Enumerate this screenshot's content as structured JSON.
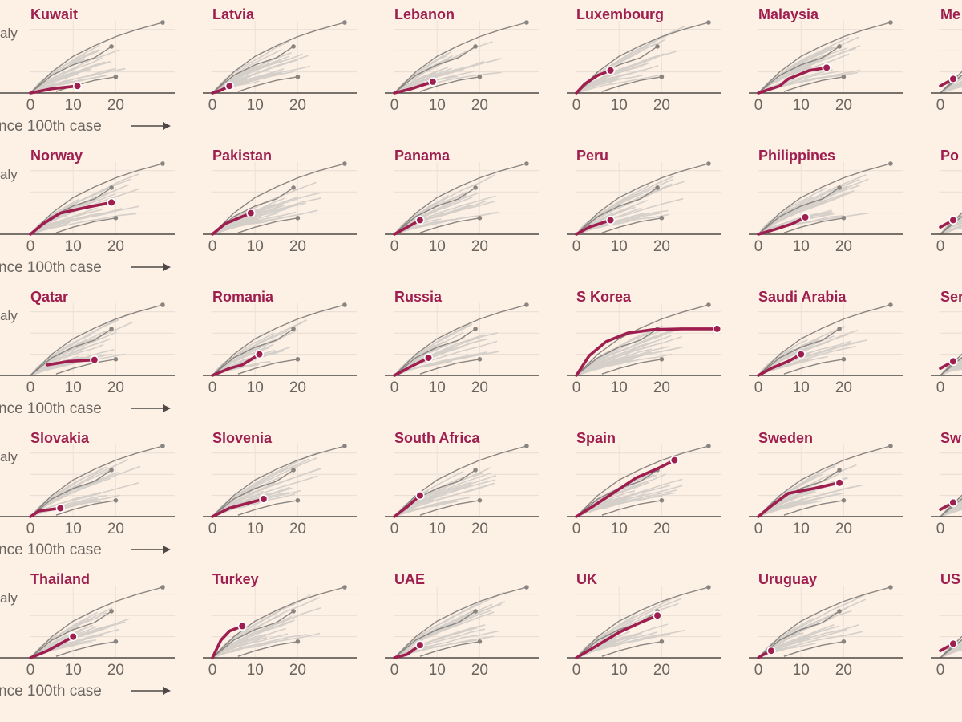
{
  "colors": {
    "background": "#fdf1e6",
    "highlight": "#9e1f4f",
    "reference": "#8a8580",
    "cloud": "#d5cfca",
    "axis": "#4d4845",
    "text": "#6b6560"
  },
  "row_fragment_top": "aly",
  "row_fragment_bottom": "nce 100th case",
  "arrow_icon": "right-arrow-icon",
  "chart_data": {
    "type": "line",
    "x_ticks": [
      "0",
      "10",
      "20"
    ],
    "xlim": [
      0,
      35
    ],
    "log_scale_y": true,
    "reference_series": [
      {
        "points": [
          [
            0,
            0
          ],
          [
            5,
            0.3
          ],
          [
            10,
            0.52
          ],
          [
            15,
            0.67
          ],
          [
            20,
            0.8
          ],
          [
            25,
            0.9
          ],
          [
            31,
            1.0
          ]
        ],
        "end_marker": true
      },
      {
        "points": [
          [
            0,
            0
          ],
          [
            5,
            0.25
          ],
          [
            10,
            0.4
          ],
          [
            15,
            0.5
          ],
          [
            19,
            0.66
          ]
        ],
        "end_marker": true
      },
      {
        "points": [
          [
            6,
            0.02
          ],
          [
            10,
            0.1
          ],
          [
            15,
            0.18
          ],
          [
            20,
            0.23
          ]
        ],
        "end_marker": true
      }
    ],
    "panels": [
      {
        "title": "Kuwait",
        "row_label": true,
        "points": [
          [
            0,
            0
          ],
          [
            5,
            0.06
          ],
          [
            11,
            0.1
          ]
        ]
      },
      {
        "title": "Latvia",
        "points": [
          [
            0,
            0
          ],
          [
            2,
            0.04
          ],
          [
            4,
            0.1
          ]
        ]
      },
      {
        "title": "Lebanon",
        "points": [
          [
            0,
            0
          ],
          [
            4,
            0.06
          ],
          [
            9,
            0.16
          ]
        ]
      },
      {
        "title": "Luxembourg",
        "points": [
          [
            0,
            0
          ],
          [
            2,
            0.13
          ],
          [
            5,
            0.25
          ],
          [
            8,
            0.32
          ]
        ]
      },
      {
        "title": "Malaysia",
        "points": [
          [
            0,
            0
          ],
          [
            5,
            0.1
          ],
          [
            7,
            0.2
          ],
          [
            12,
            0.32
          ],
          [
            16,
            0.36
          ]
        ]
      },
      {
        "title": "Me",
        "points": [
          [
            0,
            0.1
          ],
          [
            3,
            0.2
          ]
        ]
      },
      {
        "title": "Norway",
        "row_label": true,
        "points": [
          [
            0,
            0
          ],
          [
            3,
            0.15
          ],
          [
            7,
            0.3
          ],
          [
            13,
            0.38
          ],
          [
            19,
            0.45
          ]
        ]
      },
      {
        "title": "Pakistan",
        "points": [
          [
            0,
            0
          ],
          [
            3,
            0.15
          ],
          [
            9,
            0.3
          ]
        ]
      },
      {
        "title": "Panama",
        "points": [
          [
            0,
            0
          ],
          [
            3,
            0.1
          ],
          [
            6,
            0.2
          ]
        ]
      },
      {
        "title": "Peru",
        "points": [
          [
            0,
            0
          ],
          [
            3,
            0.1
          ],
          [
            8,
            0.2
          ]
        ]
      },
      {
        "title": "Philippines",
        "points": [
          [
            0,
            0
          ],
          [
            4,
            0.07
          ],
          [
            8,
            0.15
          ],
          [
            11,
            0.24
          ]
        ]
      },
      {
        "title": "Po",
        "points": [
          [
            0,
            0.1
          ],
          [
            3,
            0.2
          ]
        ]
      },
      {
        "title": "Qatar",
        "row_label": true,
        "points": [
          [
            4,
            0.15
          ],
          [
            9,
            0.2
          ],
          [
            15,
            0.22
          ]
        ]
      },
      {
        "title": "Romania",
        "points": [
          [
            0,
            0
          ],
          [
            4,
            0.1
          ],
          [
            7,
            0.15
          ],
          [
            11,
            0.3
          ]
        ]
      },
      {
        "title": "Russia",
        "points": [
          [
            0,
            0
          ],
          [
            4,
            0.13
          ],
          [
            8,
            0.25
          ]
        ]
      },
      {
        "title": "S Korea",
        "points": [
          [
            0,
            0
          ],
          [
            3,
            0.28
          ],
          [
            7,
            0.48
          ],
          [
            12,
            0.6
          ],
          [
            18,
            0.65
          ],
          [
            25,
            0.66
          ],
          [
            33,
            0.66
          ]
        ]
      },
      {
        "title": "Saudi Arabia",
        "points": [
          [
            0,
            0
          ],
          [
            3,
            0.1
          ],
          [
            7,
            0.2
          ],
          [
            10,
            0.3
          ]
        ]
      },
      {
        "title": "Ser",
        "points": [
          [
            0,
            0.1
          ],
          [
            3,
            0.2
          ]
        ]
      },
      {
        "title": "Slovakia",
        "row_label": true,
        "points": [
          [
            0,
            0
          ],
          [
            2,
            0.08
          ],
          [
            7,
            0.12
          ]
        ]
      },
      {
        "title": "Slovenia",
        "points": [
          [
            0,
            0
          ],
          [
            4,
            0.12
          ],
          [
            12,
            0.25
          ]
        ]
      },
      {
        "title": "South Africa",
        "points": [
          [
            0,
            0
          ],
          [
            3,
            0.14
          ],
          [
            6,
            0.3
          ]
        ]
      },
      {
        "title": "Spain",
        "points": [
          [
            0,
            0
          ],
          [
            4,
            0.15
          ],
          [
            9,
            0.35
          ],
          [
            14,
            0.55
          ],
          [
            19,
            0.68
          ],
          [
            23,
            0.8
          ]
        ]
      },
      {
        "title": "Sweden",
        "points": [
          [
            0,
            0
          ],
          [
            3,
            0.15
          ],
          [
            7,
            0.33
          ],
          [
            13,
            0.4
          ],
          [
            19,
            0.48
          ]
        ]
      },
      {
        "title": "Sw",
        "points": [
          [
            0,
            0.1
          ],
          [
            3,
            0.2
          ]
        ]
      },
      {
        "title": "Thailand",
        "row_label": true,
        "points": [
          [
            0,
            0
          ],
          [
            4,
            0.1
          ],
          [
            7,
            0.2
          ],
          [
            10,
            0.3
          ]
        ]
      },
      {
        "title": "Turkey",
        "points": [
          [
            0,
            0
          ],
          [
            2,
            0.25
          ],
          [
            4,
            0.38
          ],
          [
            7,
            0.45
          ]
        ]
      },
      {
        "title": "UAE",
        "points": [
          [
            0,
            0
          ],
          [
            3,
            0.05
          ],
          [
            6,
            0.18
          ]
        ]
      },
      {
        "title": "UK",
        "points": [
          [
            0,
            0
          ],
          [
            5,
            0.18
          ],
          [
            10,
            0.36
          ],
          [
            15,
            0.5
          ],
          [
            19,
            0.6
          ]
        ]
      },
      {
        "title": "Uruguay",
        "points": [
          [
            0,
            0
          ],
          [
            1,
            0.04
          ],
          [
            3,
            0.1
          ]
        ]
      },
      {
        "title": "US",
        "points": [
          [
            0,
            0.1
          ],
          [
            3,
            0.2
          ]
        ]
      }
    ]
  }
}
